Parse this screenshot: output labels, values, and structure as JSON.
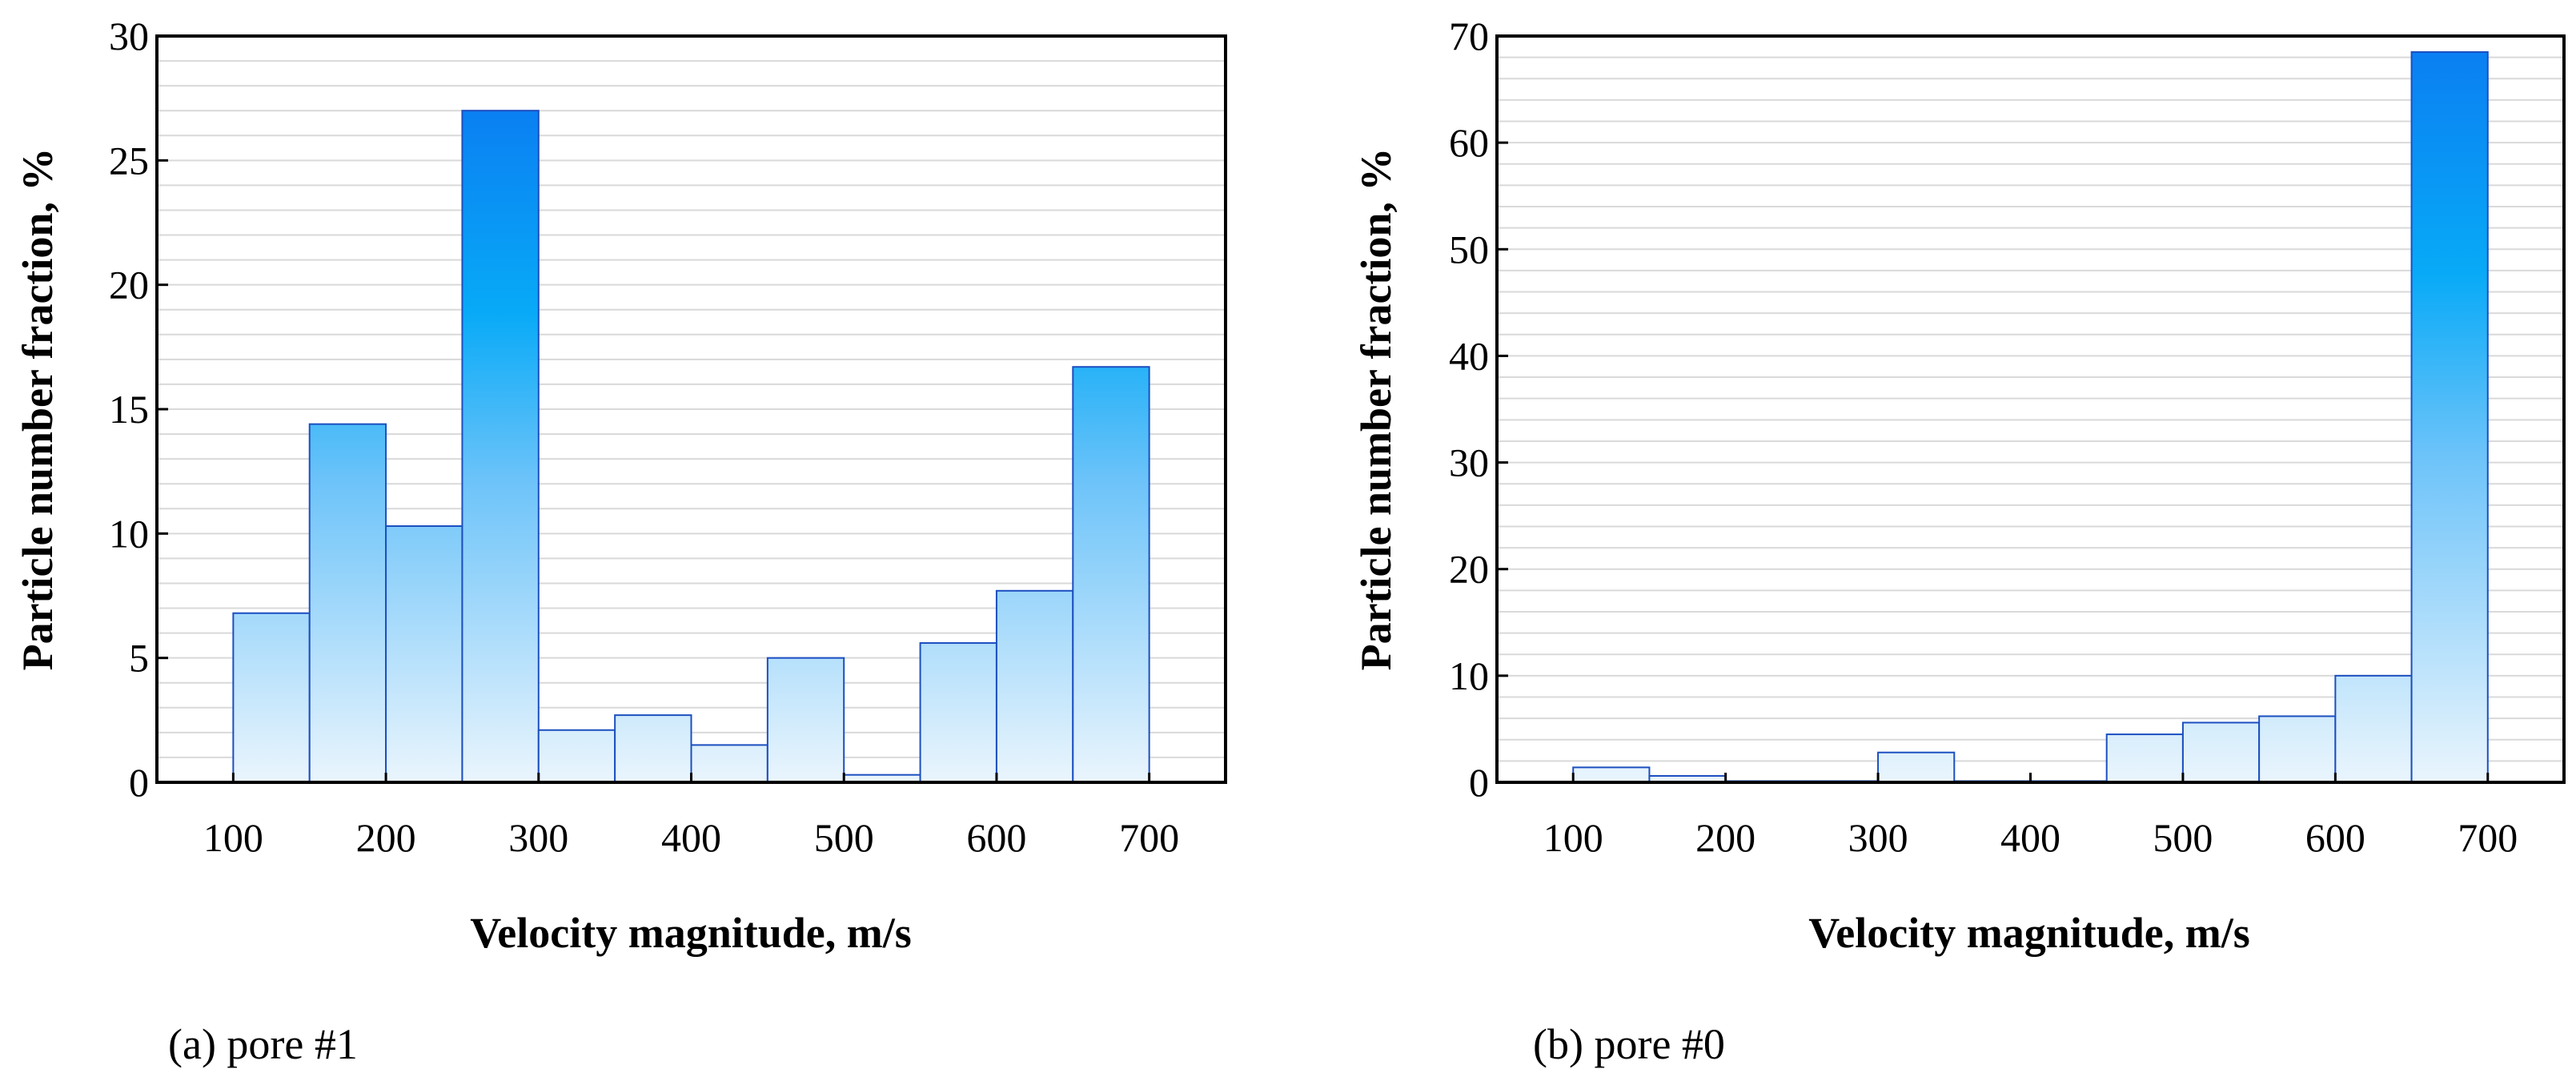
{
  "charts": [
    {
      "id": "a",
      "caption": "(a) pore #1",
      "chart_data": {
        "type": "bar",
        "bin_width": 50,
        "bins": [
          {
            "x0": 100,
            "x1": 150,
            "value": 6.8
          },
          {
            "x0": 150,
            "x1": 200,
            "value": 14.4
          },
          {
            "x0": 200,
            "x1": 250,
            "value": 10.3
          },
          {
            "x0": 250,
            "x1": 300,
            "value": 27.0
          },
          {
            "x0": 300,
            "x1": 350,
            "value": 2.1
          },
          {
            "x0": 350,
            "x1": 400,
            "value": 2.7
          },
          {
            "x0": 400,
            "x1": 450,
            "value": 1.5
          },
          {
            "x0": 450,
            "x1": 500,
            "value": 5.0
          },
          {
            "x0": 500,
            "x1": 550,
            "value": 0.3
          },
          {
            "x0": 550,
            "x1": 600,
            "value": 5.6
          },
          {
            "x0": 600,
            "x1": 650,
            "value": 7.7
          },
          {
            "x0": 650,
            "x1": 700,
            "value": 16.7
          }
        ],
        "xlabel": "Velocity magnitude, m/s",
        "ylabel": "Particle number fraction, %",
        "xlim": [
          50,
          750
        ],
        "ylim": [
          0,
          30
        ],
        "xticks": [
          100,
          200,
          300,
          400,
          500,
          600,
          700
        ],
        "yticks": [
          0,
          5,
          10,
          15,
          20,
          25,
          30
        ],
        "grid_minor_step": 1,
        "grid": true
      }
    },
    {
      "id": "b",
      "caption": "(b) pore #0",
      "chart_data": {
        "type": "bar",
        "bin_width": 50,
        "bins": [
          {
            "x0": 100,
            "x1": 150,
            "value": 1.4
          },
          {
            "x0": 150,
            "x1": 200,
            "value": 0.6
          },
          {
            "x0": 200,
            "x1": 250,
            "value": 0.0
          },
          {
            "x0": 250,
            "x1": 300,
            "value": 0.0
          },
          {
            "x0": 300,
            "x1": 350,
            "value": 2.8
          },
          {
            "x0": 350,
            "x1": 400,
            "value": 0.0
          },
          {
            "x0": 400,
            "x1": 450,
            "value": 0.0
          },
          {
            "x0": 450,
            "x1": 500,
            "value": 4.5
          },
          {
            "x0": 500,
            "x1": 550,
            "value": 5.6
          },
          {
            "x0": 550,
            "x1": 600,
            "value": 6.2
          },
          {
            "x0": 600,
            "x1": 650,
            "value": 10.0
          },
          {
            "x0": 650,
            "x1": 700,
            "value": 68.5
          }
        ],
        "xlabel": "Velocity magnitude, m/s",
        "ylabel": "Particle number fraction, %",
        "xlim": [
          50,
          750
        ],
        "ylim": [
          0,
          70
        ],
        "xticks": [
          100,
          200,
          300,
          400,
          500,
          600,
          700
        ],
        "yticks": [
          0,
          10,
          20,
          30,
          40,
          50,
          60,
          70
        ],
        "grid_minor_step": 2,
        "grid": true
      }
    }
  ]
}
